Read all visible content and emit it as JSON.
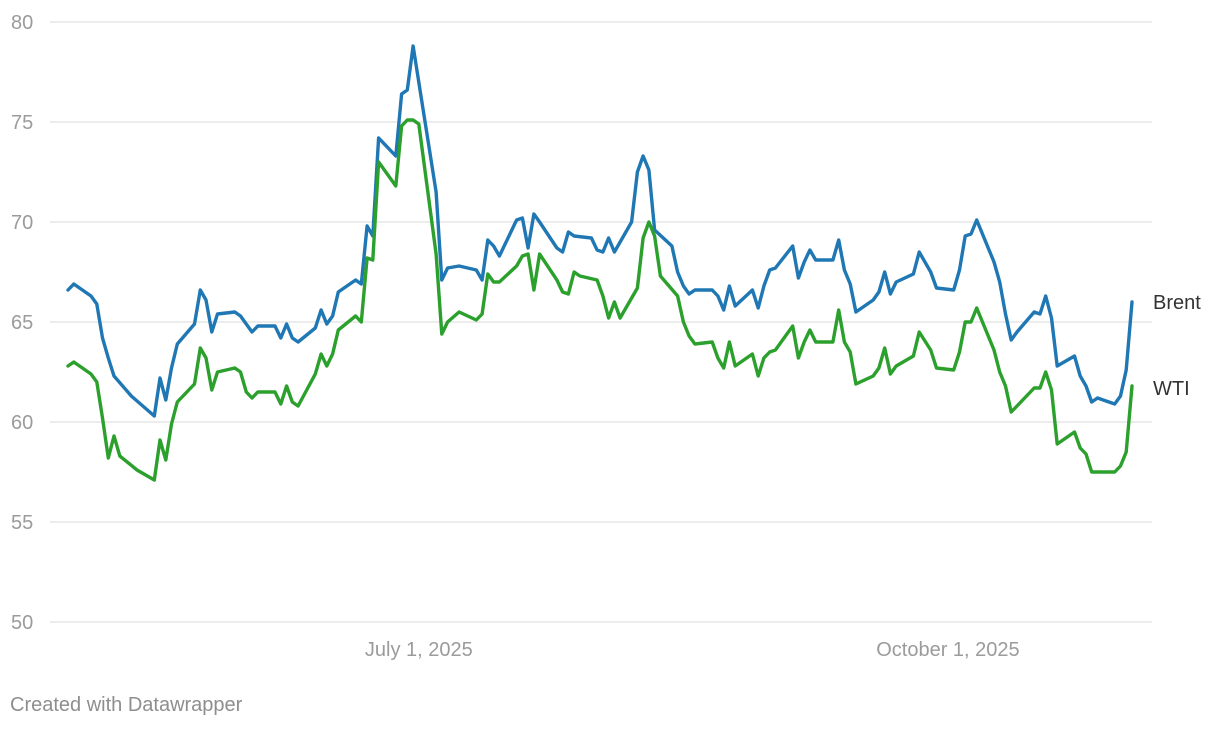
{
  "credit": "Created with Datawrapper",
  "chart_data": {
    "type": "line",
    "title": "",
    "xlabel": "",
    "ylabel": "",
    "ylim": [
      50,
      80
    ],
    "yticks": [
      50,
      55,
      60,
      65,
      70,
      75,
      80
    ],
    "xlim": [
      "2025-05-01",
      "2025-10-31"
    ],
    "xticks": [
      {
        "date": "2025-07-01",
        "label": "July 1, 2025"
      },
      {
        "date": "2025-10-01",
        "label": "October 1, 2025"
      }
    ],
    "grid": true,
    "legend": "inline-right",
    "series": [
      {
        "name": "Brent",
        "color": "#1f77b4",
        "points": [
          [
            "2025-05-01",
            66.6
          ],
          [
            "2025-05-02",
            66.9
          ],
          [
            "2025-05-05",
            66.3
          ],
          [
            "2025-05-06",
            65.9
          ],
          [
            "2025-05-07",
            64.2
          ],
          [
            "2025-05-08",
            63.2
          ],
          [
            "2025-05-09",
            62.3
          ],
          [
            "2025-05-12",
            61.3
          ],
          [
            "2025-05-14",
            60.8
          ],
          [
            "2025-05-16",
            60.3
          ],
          [
            "2025-05-17",
            62.2
          ],
          [
            "2025-05-18",
            61.1
          ],
          [
            "2025-05-19",
            62.7
          ],
          [
            "2025-05-20",
            63.9
          ],
          [
            "2025-05-23",
            64.9
          ],
          [
            "2025-05-24",
            66.6
          ],
          [
            "2025-05-25",
            66.1
          ],
          [
            "2025-05-26",
            64.5
          ],
          [
            "2025-05-27",
            65.4
          ],
          [
            "2025-05-30",
            65.5
          ],
          [
            "2025-05-31",
            65.3
          ],
          [
            "2025-06-02",
            64.5
          ],
          [
            "2025-06-03",
            64.8
          ],
          [
            "2025-06-06",
            64.8
          ],
          [
            "2025-06-07",
            64.2
          ],
          [
            "2025-06-08",
            64.9
          ],
          [
            "2025-06-09",
            64.2
          ],
          [
            "2025-06-10",
            64.0
          ],
          [
            "2025-06-13",
            64.7
          ],
          [
            "2025-06-14",
            65.6
          ],
          [
            "2025-06-15",
            64.9
          ],
          [
            "2025-06-16",
            65.3
          ],
          [
            "2025-06-17",
            66.5
          ],
          [
            "2025-06-20",
            67.1
          ],
          [
            "2025-06-21",
            66.9
          ],
          [
            "2025-06-22",
            69.8
          ],
          [
            "2025-06-23",
            69.3
          ],
          [
            "2025-06-24",
            74.2
          ],
          [
            "2025-06-27",
            73.3
          ],
          [
            "2025-06-28",
            76.4
          ],
          [
            "2025-06-29",
            76.6
          ],
          [
            "2025-06-30",
            78.8
          ],
          [
            "2025-07-04",
            71.5
          ],
          [
            "2025-07-05",
            67.1
          ],
          [
            "2025-07-06",
            67.7
          ],
          [
            "2025-07-08",
            67.8
          ],
          [
            "2025-07-11",
            67.6
          ],
          [
            "2025-07-12",
            67.1
          ],
          [
            "2025-07-13",
            69.1
          ],
          [
            "2025-07-14",
            68.8
          ],
          [
            "2025-07-15",
            68.3
          ],
          [
            "2025-07-18",
            70.1
          ],
          [
            "2025-07-19",
            70.2
          ],
          [
            "2025-07-20",
            68.7
          ],
          [
            "2025-07-21",
            70.4
          ],
          [
            "2025-07-22",
            70.0
          ],
          [
            "2025-07-25",
            68.7
          ],
          [
            "2025-07-26",
            68.5
          ],
          [
            "2025-07-27",
            69.5
          ],
          [
            "2025-07-28",
            69.3
          ],
          [
            "2025-07-31",
            69.2
          ],
          [
            "2025-08-01",
            68.6
          ],
          [
            "2025-08-02",
            68.5
          ],
          [
            "2025-08-03",
            69.2
          ],
          [
            "2025-08-04",
            68.5
          ],
          [
            "2025-08-07",
            70.0
          ],
          [
            "2025-08-08",
            72.5
          ],
          [
            "2025-08-09",
            73.3
          ],
          [
            "2025-08-10",
            72.6
          ],
          [
            "2025-08-11",
            69.6
          ],
          [
            "2025-08-14",
            68.8
          ],
          [
            "2025-08-15",
            67.5
          ],
          [
            "2025-08-16",
            66.8
          ],
          [
            "2025-08-17",
            66.4
          ],
          [
            "2025-08-18",
            66.6
          ],
          [
            "2025-08-21",
            66.6
          ],
          [
            "2025-08-22",
            66.3
          ],
          [
            "2025-08-23",
            65.6
          ],
          [
            "2025-08-24",
            66.8
          ],
          [
            "2025-08-25",
            65.8
          ],
          [
            "2025-08-28",
            66.6
          ],
          [
            "2025-08-29",
            65.7
          ],
          [
            "2025-08-30",
            66.8
          ],
          [
            "2025-08-31",
            67.6
          ],
          [
            "2025-09-01",
            67.7
          ],
          [
            "2025-09-04",
            68.8
          ],
          [
            "2025-09-05",
            67.2
          ],
          [
            "2025-09-06",
            68.0
          ],
          [
            "2025-09-07",
            68.6
          ],
          [
            "2025-09-08",
            68.1
          ],
          [
            "2025-09-11",
            68.1
          ],
          [
            "2025-09-12",
            69.1
          ],
          [
            "2025-09-13",
            67.6
          ],
          [
            "2025-09-14",
            66.9
          ],
          [
            "2025-09-15",
            65.5
          ],
          [
            "2025-09-18",
            66.1
          ],
          [
            "2025-09-19",
            66.5
          ],
          [
            "2025-09-20",
            67.5
          ],
          [
            "2025-09-21",
            66.4
          ],
          [
            "2025-09-22",
            67.0
          ],
          [
            "2025-09-25",
            67.4
          ],
          [
            "2025-09-26",
            68.5
          ],
          [
            "2025-09-28",
            67.5
          ],
          [
            "2025-09-29",
            66.7
          ],
          [
            "2025-10-02",
            66.6
          ],
          [
            "2025-10-03",
            67.6
          ],
          [
            "2025-10-04",
            69.3
          ],
          [
            "2025-10-05",
            69.4
          ],
          [
            "2025-10-06",
            70.1
          ],
          [
            "2025-10-09",
            68.0
          ],
          [
            "2025-10-10",
            67.0
          ],
          [
            "2025-10-11",
            65.4
          ],
          [
            "2025-10-12",
            64.1
          ],
          [
            "2025-10-13",
            64.5
          ],
          [
            "2025-10-16",
            65.5
          ],
          [
            "2025-10-17",
            65.4
          ],
          [
            "2025-10-18",
            66.3
          ],
          [
            "2025-10-19",
            65.2
          ],
          [
            "2025-10-20",
            62.8
          ],
          [
            "2025-10-23",
            63.3
          ],
          [
            "2025-10-24",
            62.3
          ],
          [
            "2025-10-25",
            61.8
          ],
          [
            "2025-10-26",
            61.0
          ],
          [
            "2025-10-27",
            61.2
          ],
          [
            "2025-10-30",
            60.9
          ],
          [
            "2025-10-31",
            61.3
          ],
          [
            "2025-11-01",
            62.6
          ],
          [
            "2025-11-02",
            66.0
          ]
        ]
      },
      {
        "name": "WTI",
        "color": "#2ca02c",
        "points": [
          [
            "2025-05-01",
            62.8
          ],
          [
            "2025-05-02",
            63.0
          ],
          [
            "2025-05-05",
            62.4
          ],
          [
            "2025-05-06",
            62.0
          ],
          [
            "2025-05-07",
            60.2
          ],
          [
            "2025-05-08",
            58.2
          ],
          [
            "2025-05-09",
            59.3
          ],
          [
            "2025-05-10",
            58.3
          ],
          [
            "2025-05-13",
            57.6
          ],
          [
            "2025-05-16",
            57.1
          ],
          [
            "2025-05-17",
            59.1
          ],
          [
            "2025-05-18",
            58.1
          ],
          [
            "2025-05-19",
            59.9
          ],
          [
            "2025-05-20",
            61.0
          ],
          [
            "2025-05-23",
            61.9
          ],
          [
            "2025-05-24",
            63.7
          ],
          [
            "2025-05-25",
            63.2
          ],
          [
            "2025-05-26",
            61.6
          ],
          [
            "2025-05-27",
            62.5
          ],
          [
            "2025-05-30",
            62.7
          ],
          [
            "2025-05-31",
            62.5
          ],
          [
            "2025-06-01",
            61.5
          ],
          [
            "2025-06-02",
            61.2
          ],
          [
            "2025-06-03",
            61.5
          ],
          [
            "2025-06-06",
            61.5
          ],
          [
            "2025-06-07",
            60.9
          ],
          [
            "2025-06-08",
            61.8
          ],
          [
            "2025-06-09",
            61.0
          ],
          [
            "2025-06-10",
            60.8
          ],
          [
            "2025-06-13",
            62.4
          ],
          [
            "2025-06-14",
            63.4
          ],
          [
            "2025-06-15",
            62.8
          ],
          [
            "2025-06-16",
            63.4
          ],
          [
            "2025-06-17",
            64.6
          ],
          [
            "2025-06-20",
            65.3
          ],
          [
            "2025-06-21",
            65.0
          ],
          [
            "2025-06-22",
            68.2
          ],
          [
            "2025-06-23",
            68.1
          ],
          [
            "2025-06-24",
            73.0
          ],
          [
            "2025-06-27",
            71.8
          ],
          [
            "2025-06-28",
            74.8
          ],
          [
            "2025-06-29",
            75.1
          ],
          [
            "2025-06-30",
            75.1
          ],
          [
            "2025-07-01",
            74.9
          ],
          [
            "2025-07-04",
            68.4
          ],
          [
            "2025-07-05",
            64.4
          ],
          [
            "2025-07-06",
            65.0
          ],
          [
            "2025-07-08",
            65.5
          ],
          [
            "2025-07-11",
            65.1
          ],
          [
            "2025-07-12",
            65.4
          ],
          [
            "2025-07-13",
            67.4
          ],
          [
            "2025-07-14",
            67.0
          ],
          [
            "2025-07-15",
            67.0
          ],
          [
            "2025-07-18",
            67.8
          ],
          [
            "2025-07-19",
            68.3
          ],
          [
            "2025-07-20",
            68.4
          ],
          [
            "2025-07-21",
            66.6
          ],
          [
            "2025-07-22",
            68.4
          ],
          [
            "2025-07-25",
            67.1
          ],
          [
            "2025-07-26",
            66.5
          ],
          [
            "2025-07-27",
            66.4
          ],
          [
            "2025-07-28",
            67.5
          ],
          [
            "2025-07-29",
            67.3
          ],
          [
            "2025-08-01",
            67.1
          ],
          [
            "2025-08-02",
            66.3
          ],
          [
            "2025-08-03",
            65.2
          ],
          [
            "2025-08-04",
            66.0
          ],
          [
            "2025-08-05",
            65.2
          ],
          [
            "2025-08-08",
            66.7
          ],
          [
            "2025-08-09",
            69.2
          ],
          [
            "2025-08-10",
            70.0
          ],
          [
            "2025-08-11",
            69.3
          ],
          [
            "2025-08-12",
            67.3
          ],
          [
            "2025-08-15",
            66.3
          ],
          [
            "2025-08-16",
            65.0
          ],
          [
            "2025-08-17",
            64.3
          ],
          [
            "2025-08-18",
            63.9
          ],
          [
            "2025-08-21",
            64.0
          ],
          [
            "2025-08-22",
            63.2
          ],
          [
            "2025-08-23",
            62.7
          ],
          [
            "2025-08-24",
            64.0
          ],
          [
            "2025-08-25",
            62.8
          ],
          [
            "2025-08-28",
            63.4
          ],
          [
            "2025-08-29",
            62.3
          ],
          [
            "2025-08-30",
            63.2
          ],
          [
            "2025-08-31",
            63.5
          ],
          [
            "2025-09-01",
            63.6
          ],
          [
            "2025-09-04",
            64.8
          ],
          [
            "2025-09-05",
            63.2
          ],
          [
            "2025-09-06",
            64.0
          ],
          [
            "2025-09-07",
            64.6
          ],
          [
            "2025-09-08",
            64.0
          ],
          [
            "2025-09-11",
            64.0
          ],
          [
            "2025-09-12",
            65.6
          ],
          [
            "2025-09-13",
            64.0
          ],
          [
            "2025-09-14",
            63.5
          ],
          [
            "2025-09-15",
            61.9
          ],
          [
            "2025-09-18",
            62.3
          ],
          [
            "2025-09-19",
            62.7
          ],
          [
            "2025-09-20",
            63.7
          ],
          [
            "2025-09-21",
            62.4
          ],
          [
            "2025-09-22",
            62.8
          ],
          [
            "2025-09-25",
            63.3
          ],
          [
            "2025-09-26",
            64.5
          ],
          [
            "2025-09-28",
            63.6
          ],
          [
            "2025-09-29",
            62.7
          ],
          [
            "2025-10-02",
            62.6
          ],
          [
            "2025-10-03",
            63.5
          ],
          [
            "2025-10-04",
            65.0
          ],
          [
            "2025-10-05",
            65.0
          ],
          [
            "2025-10-06",
            65.7
          ],
          [
            "2025-10-09",
            63.6
          ],
          [
            "2025-10-10",
            62.5
          ],
          [
            "2025-10-11",
            61.8
          ],
          [
            "2025-10-12",
            60.5
          ],
          [
            "2025-10-13",
            60.8
          ],
          [
            "2025-10-16",
            61.7
          ],
          [
            "2025-10-17",
            61.7
          ],
          [
            "2025-10-18",
            62.5
          ],
          [
            "2025-10-19",
            61.6
          ],
          [
            "2025-10-20",
            58.9
          ],
          [
            "2025-10-23",
            59.5
          ],
          [
            "2025-10-24",
            58.7
          ],
          [
            "2025-10-25",
            58.4
          ],
          [
            "2025-10-26",
            57.5
          ],
          [
            "2025-10-27",
            57.5
          ],
          [
            "2025-10-30",
            57.5
          ],
          [
            "2025-10-31",
            57.8
          ],
          [
            "2025-11-01",
            58.5
          ],
          [
            "2025-11-02",
            61.8
          ]
        ]
      }
    ]
  }
}
